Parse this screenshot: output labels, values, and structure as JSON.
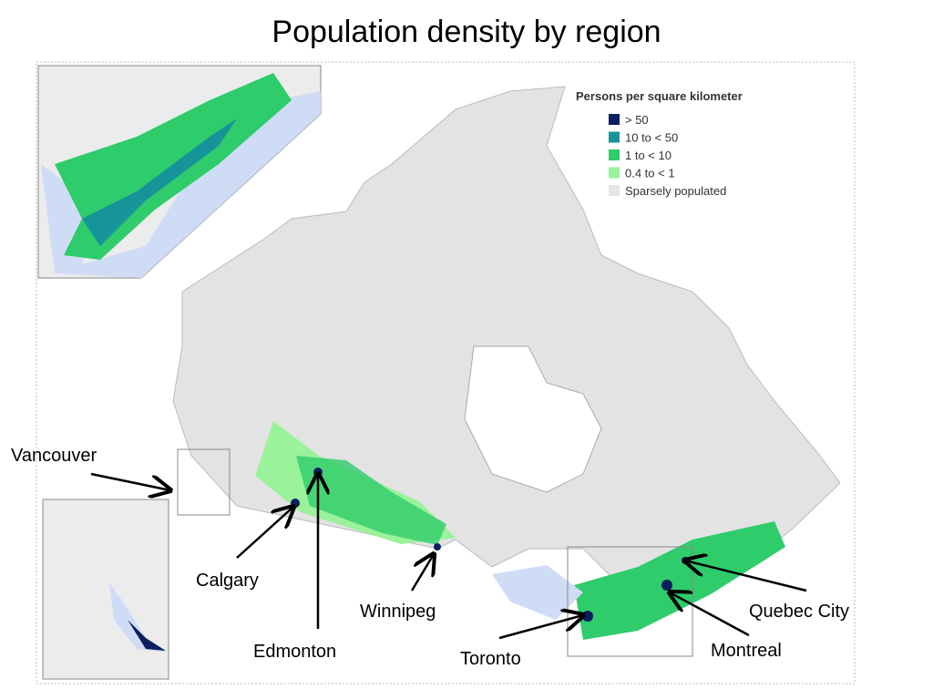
{
  "title": "Population density by region",
  "legend": {
    "title": "Persons per square kilometer",
    "items": [
      {
        "label": "> 50",
        "color": "#0b1e5e"
      },
      {
        "label": "10    to < 50",
        "color": "#17949a"
      },
      {
        "label": "1    to < 10",
        "color": "#2ecc6a"
      },
      {
        "label": "0.4 to <   1",
        "color": "#9af29a"
      },
      {
        "label": "Sparsely populated",
        "color": "#e6e6e6"
      }
    ]
  },
  "cities": [
    {
      "label": "Vancouver"
    },
    {
      "label": "Calgary"
    },
    {
      "label": "Edmonton"
    },
    {
      "label": "Winnipeg"
    },
    {
      "label": "Toronto"
    },
    {
      "label": "Quebec City"
    },
    {
      "label": "Montreal"
    }
  ]
}
